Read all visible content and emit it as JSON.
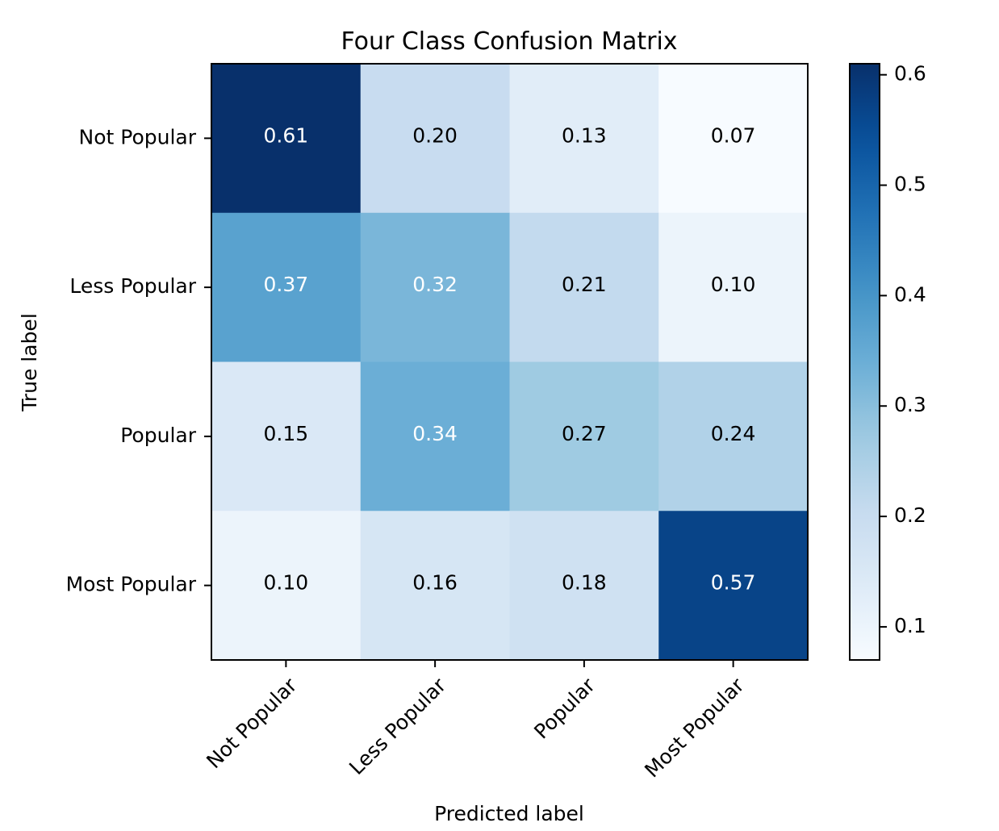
{
  "chart_data": {
    "type": "heatmap",
    "title": "Four Class Confusion Matrix",
    "xlabel": "Predicted label",
    "ylabel": "True label",
    "x_categories": [
      "Not Popular",
      "Less Popular",
      "Popular",
      "Most Popular"
    ],
    "y_categories": [
      "Not Popular",
      "Less Popular",
      "Popular",
      "Most Popular"
    ],
    "values": [
      [
        0.61,
        0.2,
        0.13,
        0.07
      ],
      [
        0.37,
        0.32,
        0.21,
        0.1
      ],
      [
        0.15,
        0.34,
        0.27,
        0.24
      ],
      [
        0.1,
        0.16,
        0.18,
        0.57
      ]
    ],
    "cell_labels": [
      [
        "0.61",
        "0.20",
        "0.13",
        "0.07"
      ],
      [
        "0.37",
        "0.32",
        "0.21",
        "0.10"
      ],
      [
        "0.15",
        "0.34",
        "0.27",
        "0.24"
      ],
      [
        "0.10",
        "0.16",
        "0.18",
        "0.57"
      ]
    ],
    "colormap": "Blues",
    "color_range": [
      0.07,
      0.61
    ],
    "colorbar": {
      "ticks": [
        0.1,
        0.2,
        0.3,
        0.4,
        0.5,
        0.6
      ],
      "tick_labels": [
        "0.1",
        "0.2",
        "0.3",
        "0.4",
        "0.5",
        "0.6"
      ],
      "placement": "right"
    },
    "grid": false,
    "x_tick_rotation_deg": 45,
    "text_color_dark": "#000000",
    "text_color_light": "#ffffff"
  }
}
